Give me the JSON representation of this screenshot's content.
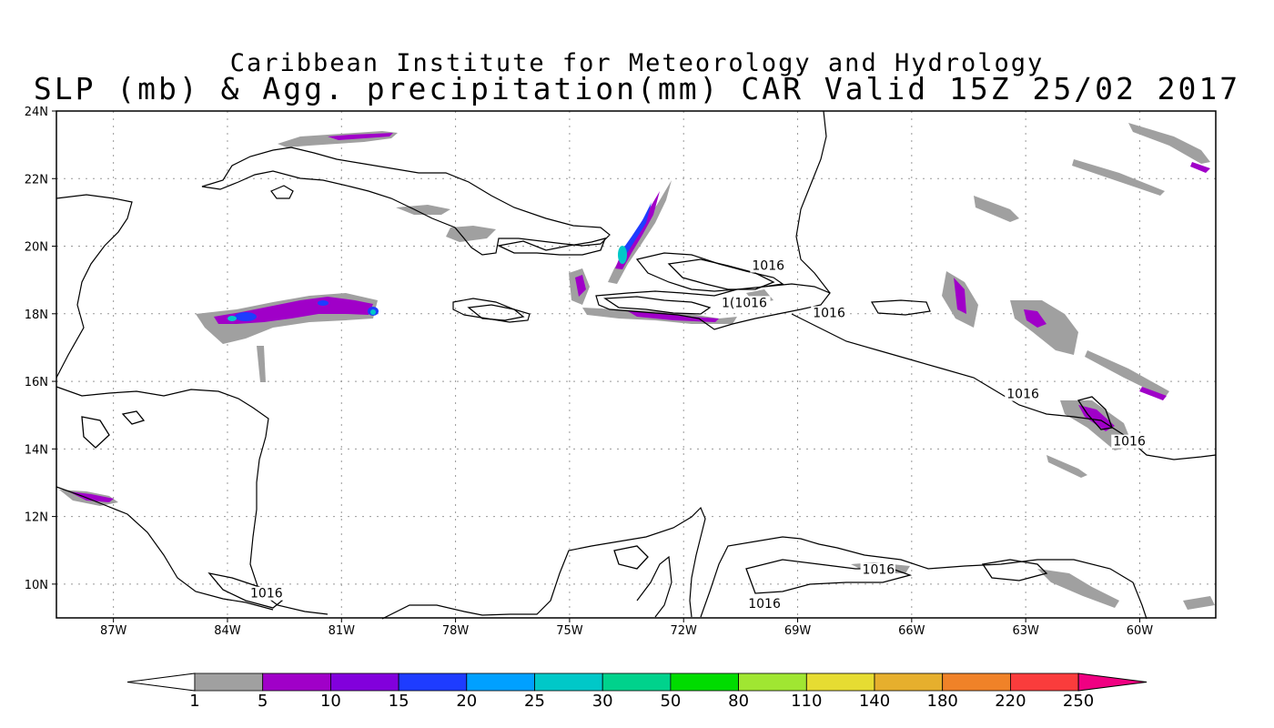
{
  "title_line1": "Caribbean Institute for Meteorology and Hydrology",
  "title_line2": "SLP (mb) & Agg. precipitation(mm) CAR Valid 15Z 25/02 2017",
  "map": {
    "lon_range": [
      -88.5,
      -58
    ],
    "lat_range": [
      9,
      24
    ],
    "lat_ticks": [
      "10N",
      "12N",
      "14N",
      "16N",
      "18N",
      "20N",
      "22N",
      "24N"
    ],
    "lon_ticks": [
      "87W",
      "84W",
      "81W",
      "78W",
      "75W",
      "72W",
      "69W",
      "66W",
      "63W",
      "60W"
    ],
    "grid": "dotted",
    "isobar_labels": [
      {
        "text": "1016",
        "lon": -70.2,
        "lat": 19.3
      },
      {
        "text": "1(1016",
        "lon": -71.0,
        "lat": 18.2
      },
      {
        "text": "1016",
        "lon": -68.6,
        "lat": 17.9
      },
      {
        "text": "1016",
        "lon": -63.5,
        "lat": 15.5
      },
      {
        "text": "1016",
        "lon": -60.7,
        "lat": 14.1
      },
      {
        "text": "1016",
        "lon": -67.3,
        "lat": 10.3
      },
      {
        "text": "1016",
        "lon": -70.3,
        "lat": 9.3
      },
      {
        "text": "1016",
        "lon": -83.4,
        "lat": 9.6
      }
    ],
    "land_color": "#000000",
    "precip_color_light": "#a0a0a0"
  },
  "colorbar": {
    "labels": [
      "1",
      "5",
      "10",
      "15",
      "20",
      "25",
      "30",
      "50",
      "80",
      "110",
      "140",
      "180",
      "220",
      "250"
    ],
    "colors": [
      "#a0a0a0",
      "#a000c8",
      "#8200dc",
      "#1e3cff",
      "#00a0ff",
      "#00c8c8",
      "#00d28c",
      "#00dc00",
      "#a0e632",
      "#e6dc32",
      "#e6af2d",
      "#f08228",
      "#fa3c3c",
      "#f00082"
    ]
  }
}
